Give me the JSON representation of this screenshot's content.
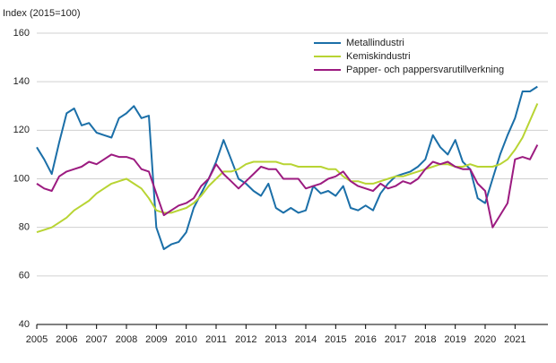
{
  "chart_data": {
    "type": "line",
    "y_label": "Index (2015=100)",
    "x": [
      2005,
      2005.25,
      2005.5,
      2005.75,
      2006,
      2006.25,
      2006.5,
      2006.75,
      2007,
      2007.25,
      2007.5,
      2007.75,
      2008,
      2008.25,
      2008.5,
      2008.75,
      2009,
      2009.25,
      2009.5,
      2009.75,
      2010,
      2010.25,
      2010.5,
      2010.75,
      2011,
      2011.25,
      2011.5,
      2011.75,
      2012,
      2012.25,
      2012.5,
      2012.75,
      2013,
      2013.25,
      2013.5,
      2013.75,
      2014,
      2014.25,
      2014.5,
      2014.75,
      2015,
      2015.25,
      2015.5,
      2015.75,
      2016,
      2016.25,
      2016.5,
      2016.75,
      2017,
      2017.25,
      2017.5,
      2017.75,
      2018,
      2018.25,
      2018.5,
      2018.75,
      2019,
      2019.25,
      2019.5,
      2019.75,
      2020,
      2020.25,
      2020.5,
      2020.75,
      2021,
      2021.25,
      2021.5,
      2021.75
    ],
    "series": [
      {
        "name": "Metallindustri",
        "color": "#1b6fa8",
        "values": [
          113,
          108,
          102,
          115,
          127,
          129,
          122,
          123,
          119,
          118,
          117,
          125,
          127,
          130,
          125,
          126,
          80,
          71,
          73,
          74,
          78,
          88,
          94,
          100,
          107,
          116,
          108,
          100,
          98,
          95,
          93,
          98,
          88,
          86,
          88,
          86,
          87,
          97,
          94,
          95,
          93,
          97,
          88,
          87,
          89,
          87,
          94,
          98,
          101,
          102,
          103,
          105,
          108,
          118,
          113,
          110,
          116,
          107,
          104,
          92,
          90,
          100,
          110,
          118,
          125,
          136,
          136,
          138
        ]
      },
      {
        "name": "Kemiskindustri",
        "color": "#b8d433",
        "values": [
          78,
          79,
          80,
          82,
          84,
          87,
          89,
          91,
          94,
          96,
          98,
          99,
          100,
          98,
          96,
          92,
          87,
          86,
          86,
          87,
          88,
          90,
          93,
          97,
          100,
          103,
          103,
          104,
          106,
          107,
          107,
          107,
          107,
          106,
          106,
          105,
          105,
          105,
          105,
          104,
          104,
          101,
          99,
          99,
          98,
          98,
          99,
          100,
          101,
          101,
          102,
          103,
          104,
          105,
          106,
          106,
          105,
          105,
          106,
          105,
          105,
          105,
          106,
          108,
          112,
          117,
          124,
          131
        ]
      },
      {
        "name": "Papper- och pappersvarutillverkning",
        "color": "#9c1b80",
        "values": [
          98,
          96,
          95,
          101,
          103,
          104,
          105,
          107,
          106,
          108,
          110,
          109,
          109,
          108,
          104,
          103,
          94,
          85,
          87,
          89,
          90,
          92,
          97,
          100,
          106,
          102,
          99,
          96,
          99,
          102,
          105,
          104,
          104,
          100,
          100,
          100,
          96,
          97,
          98,
          100,
          101,
          103,
          99,
          97,
          96,
          95,
          98,
          96,
          97,
          99,
          98,
          100,
          104,
          107,
          106,
          107,
          105,
          104,
          104,
          98,
          95,
          80,
          85,
          90,
          108,
          109,
          108,
          114
        ]
      }
    ],
    "xlim": [
      2005,
      2022.1
    ],
    "xticks": [
      2005,
      2006,
      2007,
      2008,
      2009,
      2010,
      2011,
      2012,
      2013,
      2014,
      2015,
      2016,
      2017,
      2018,
      2019,
      2020,
      2021
    ],
    "ylim": [
      40,
      160
    ],
    "yticks": [
      40,
      60,
      80,
      100,
      120,
      140,
      160
    ],
    "grid": true,
    "legend": "top-right"
  }
}
